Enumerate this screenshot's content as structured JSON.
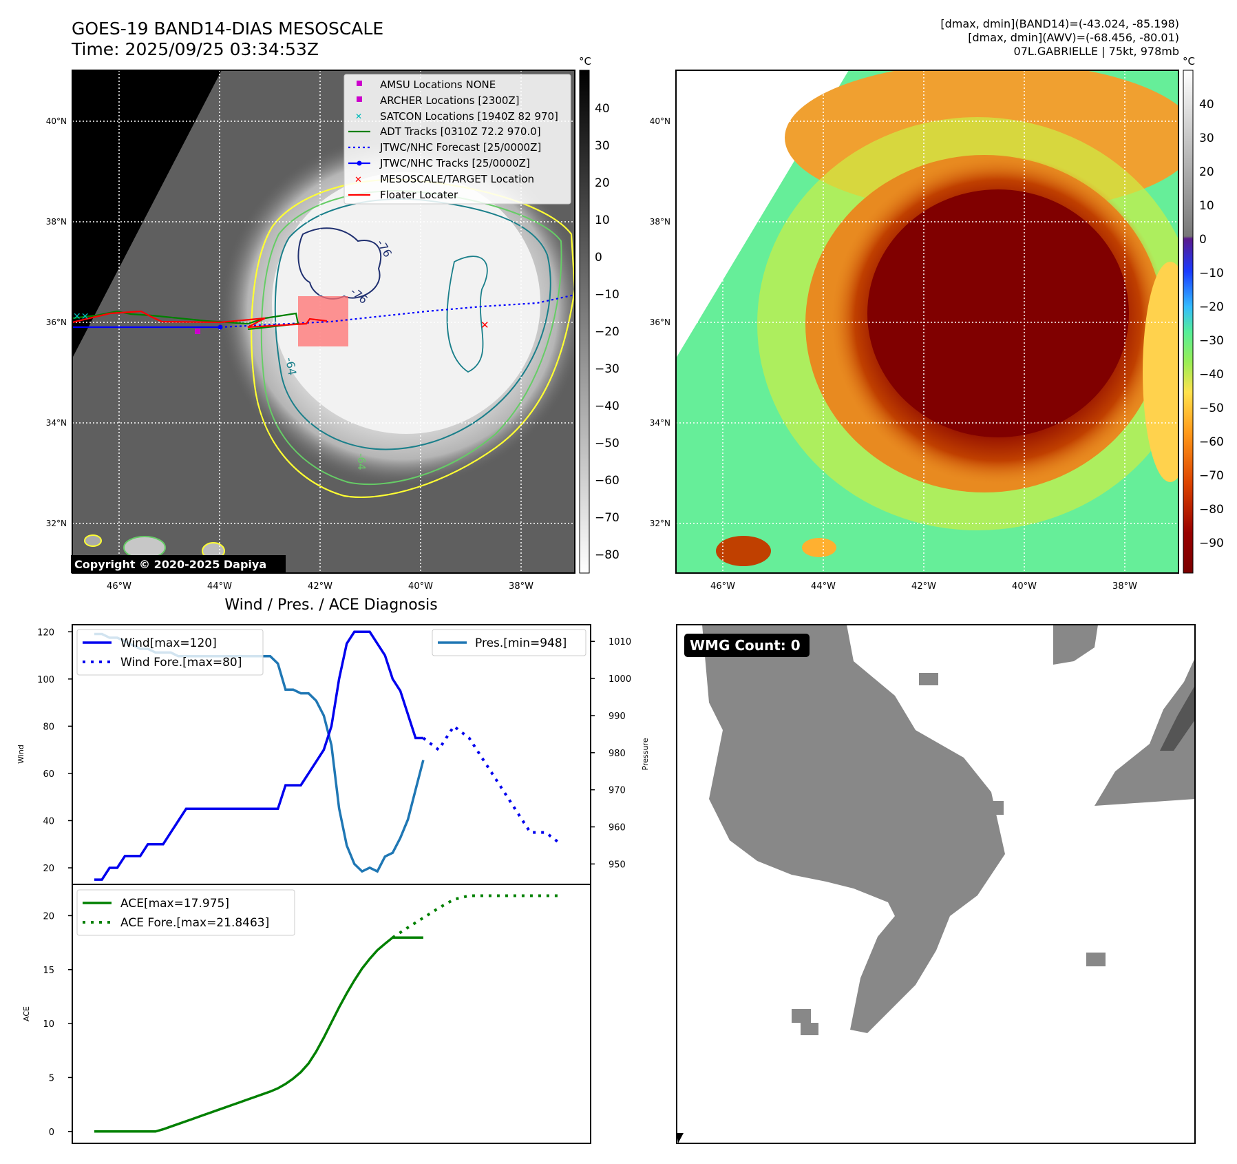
{
  "header": {
    "title_line1": "GOES-19 BAND14-DIAS MESOSCALE",
    "title_line2": "Time: 2025/09/25 03:34:53Z",
    "stats_line1": "[dmax, dmin](BAND14)=(-43.024, -85.198)",
    "stats_line2": "[dmax, dmin](AWV)=(-68.456, -80.01)",
    "stats_line3": "07L.GABRIELLE | 75kt, 978mb"
  },
  "ir_panel": {
    "lat_labels": [
      "40°N",
      "38°N",
      "36°N",
      "34°N",
      "32°N"
    ],
    "lon_labels": [
      "46°W",
      "44°W",
      "42°W",
      "40°W",
      "38°W"
    ],
    "colorbar_unit": "°C",
    "colorbar_ticks": [
      "40",
      "30",
      "20",
      "10",
      "0",
      "−10",
      "−20",
      "−30",
      "−40",
      "−50",
      "−60",
      "−70",
      "−80"
    ],
    "contour_labels": [
      "-76",
      "-76",
      "-64",
      "-64"
    ],
    "copyright": "Copyright © 2020-2025 Dapiya",
    "legend": [
      {
        "label": "AMSU Locations NONE",
        "color": "#cc00cc",
        "symbol": "square"
      },
      {
        "label": "ARCHER Locations [2300Z]",
        "color": "#cc00cc",
        "symbol": "square"
      },
      {
        "label": "SATCON Locations [1940Z 82 970]",
        "color": "#00bbbb",
        "symbol": "x"
      },
      {
        "label": "ADT Tracks [0310Z 72.2 970.0]",
        "color": "#008000",
        "symbol": "line"
      },
      {
        "label": "JTWC/NHC Forecast [25/0000Z]",
        "color": "#0000ff",
        "symbol": "dotted"
      },
      {
        "label": "JTWC/NHC Tracks [25/0000Z]",
        "color": "#0000ff",
        "symbol": "line-dot"
      },
      {
        "label": "MESOSCALE/TARGET Location",
        "color": "#ff0000",
        "symbol": "x"
      },
      {
        "label": "Floater Locater",
        "color": "#ff0000",
        "symbol": "line"
      }
    ]
  },
  "awv_panel": {
    "lat_labels": [
      "40°N",
      "38°N",
      "36°N",
      "34°N",
      "32°N"
    ],
    "lon_labels": [
      "46°W",
      "44°W",
      "42°W",
      "40°W",
      "38°W"
    ],
    "colorbar_unit": "°C",
    "colorbar_ticks": [
      "40",
      "30",
      "20",
      "10",
      "0",
      "−10",
      "−20",
      "−30",
      "−40",
      "−50",
      "−60",
      "−70",
      "−80",
      "−90"
    ]
  },
  "wmg_panel": {
    "badge": "WMG Count: 0"
  },
  "chart_data": [
    {
      "type": "line",
      "title": "Wind / Pres. / ACE Diagnosis",
      "ylabel": "Wind",
      "ylim": [
        13,
        123
      ],
      "yticks": [
        20,
        40,
        60,
        80,
        100,
        120
      ],
      "y2label": "Pressure",
      "y2lim": [
        944.5,
        1014.5
      ],
      "y2ticks": [
        950,
        960,
        970,
        980,
        990,
        1000,
        1010
      ],
      "x_index_range": [
        0,
        62
      ],
      "series": [
        {
          "name": "Wind[max=120]",
          "axis": "left",
          "style": "solid",
          "color": "#0000ee",
          "x": [
            0,
            1,
            2,
            3,
            4,
            5,
            6,
            7,
            8,
            9,
            10,
            11,
            12,
            13,
            14,
            15,
            16,
            17,
            18,
            19,
            20,
            21,
            22,
            23,
            24,
            25,
            26,
            27,
            28,
            29,
            30,
            31,
            32,
            33,
            34,
            35,
            36,
            37,
            38,
            39,
            40,
            41,
            42,
            43
          ],
          "values": [
            15,
            15,
            20,
            20,
            25,
            25,
            25,
            30,
            30,
            30,
            35,
            40,
            45,
            45,
            45,
            45,
            45,
            45,
            45,
            45,
            45,
            45,
            45,
            45,
            45,
            55,
            55,
            55,
            60,
            65,
            70,
            80,
            100,
            115,
            120,
            120,
            120,
            115,
            110,
            100,
            95,
            85,
            75,
            75
          ]
        },
        {
          "name": "Wind Fore.[max=80]",
          "axis": "left",
          "style": "dotted",
          "color": "#0000ee",
          "x": [
            43,
            45,
            47,
            49,
            51,
            53,
            55,
            57,
            59,
            61
          ],
          "values": [
            75,
            70,
            80,
            75,
            65,
            55,
            45,
            35,
            35,
            30
          ]
        },
        {
          "name": "Pres.[min=948]",
          "axis": "right",
          "style": "solid",
          "color": "#1f77b4",
          "x": [
            0,
            1,
            2,
            3,
            4,
            5,
            6,
            7,
            8,
            9,
            10,
            11,
            12,
            13,
            14,
            15,
            16,
            17,
            18,
            19,
            20,
            21,
            22,
            23,
            24,
            25,
            26,
            27,
            28,
            29,
            30,
            31,
            32,
            33,
            34,
            35,
            36,
            37,
            38,
            39,
            40,
            41,
            42,
            43
          ],
          "values": [
            1012,
            1012,
            1011,
            1011,
            1010,
            1009,
            1008,
            1008,
            1007,
            1007,
            1007,
            1006,
            1006,
            1006,
            1006,
            1006,
            1006,
            1006,
            1006,
            1006,
            1006,
            1006,
            1006,
            1006,
            1004,
            997,
            997,
            996,
            996,
            994,
            990,
            982,
            965,
            955,
            950,
            948,
            949,
            948,
            952,
            953,
            957,
            962,
            970,
            978
          ]
        }
      ]
    },
    {
      "type": "line",
      "ylabel": "ACE",
      "ylim": [
        -1.1,
        22.9
      ],
      "yticks": [
        0,
        5,
        10,
        15,
        20
      ],
      "x_index_range": [
        0,
        62
      ],
      "series": [
        {
          "name": "ACE[max=17.975]",
          "style": "solid",
          "color": "#008000",
          "x": [
            0,
            1,
            2,
            3,
            4,
            5,
            6,
            7,
            8,
            9,
            10,
            11,
            12,
            13,
            14,
            15,
            16,
            17,
            18,
            19,
            20,
            21,
            22,
            23,
            24,
            25,
            26,
            27,
            28,
            29,
            30,
            31,
            32,
            33,
            34,
            35,
            36,
            37,
            38,
            39,
            40,
            41,
            42,
            43
          ],
          "values": [
            0,
            0,
            0,
            0,
            0,
            0,
            0,
            0,
            0,
            0.2,
            0.45,
            0.7,
            0.95,
            1.2,
            1.45,
            1.7,
            1.95,
            2.2,
            2.45,
            2.7,
            2.95,
            3.2,
            3.45,
            3.7,
            4.0,
            4.4,
            4.9,
            5.5,
            6.3,
            7.4,
            8.7,
            10.1,
            11.5,
            12.8,
            14.0,
            15.1,
            16.0,
            16.8,
            17.4,
            17.975,
            17.975,
            17.975,
            17.975,
            17.975
          ]
        },
        {
          "name": "ACE Fore.[max=21.8463]",
          "style": "dotted",
          "color": "#008000",
          "x": [
            39,
            41,
            43,
            45,
            47,
            49,
            51,
            53,
            55,
            57,
            59,
            61
          ],
          "values": [
            17.975,
            18.9,
            19.8,
            20.7,
            21.5,
            21.8463,
            21.8463,
            21.8463,
            21.8463,
            21.8463,
            21.8463,
            21.8463
          ]
        }
      ]
    }
  ]
}
